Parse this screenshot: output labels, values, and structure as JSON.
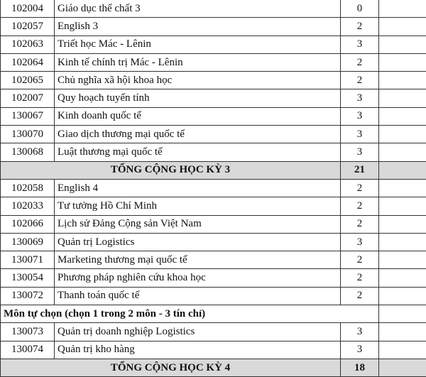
{
  "semester3": {
    "courses": [
      {
        "code": "102004",
        "name": "Giáo dục thể chất 3",
        "credits": "0"
      },
      {
        "code": "102057",
        "name": "English 3",
        "credits": "2"
      },
      {
        "code": "102063",
        "name": "Triết học Mác - Lênin",
        "credits": "3"
      },
      {
        "code": "102064",
        "name": "Kinh tế chính trị Mác - Lênin",
        "credits": "2"
      },
      {
        "code": "102065",
        "name": "Chủ nghĩa xã hội khoa học",
        "credits": "2"
      },
      {
        "code": "102007",
        "name": "Quy hoạch tuyến tính",
        "credits": "3"
      },
      {
        "code": "130067",
        "name": "Kinh doanh quốc tế",
        "credits": "3"
      },
      {
        "code": "130070",
        "name": "Giao dịch thương mại quốc tế",
        "credits": "3"
      },
      {
        "code": "130068",
        "name": "Luật thương mại quốc tế",
        "credits": "3"
      }
    ],
    "total_label": "TỔNG CỘNG HỌC KỲ 3",
    "total": "21"
  },
  "semester4": {
    "courses": [
      {
        "code": "102058",
        "name": "English 4",
        "credits": "2"
      },
      {
        "code": "102033",
        "name": "Tư tưởng Hồ Chí Minh",
        "credits": "2"
      },
      {
        "code": "102066",
        "name": "Lịch sử Đảng Cộng sản Việt Nam",
        "credits": "2"
      },
      {
        "code": "130069",
        "name": "Quản trị Logistics",
        "credits": "3"
      },
      {
        "code": "130071",
        "name": "Marketing thương mại quốc tế",
        "credits": "2"
      },
      {
        "code": "130054",
        "name": "Phương pháp nghiên cứu khoa học",
        "credits": "2"
      },
      {
        "code": "130072",
        "name": "Thanh toán quốc tế",
        "credits": "2"
      }
    ],
    "elective_label": "Môn tự chọn (chọn 1 trong 2 môn - 3 tín chỉ)",
    "electives": [
      {
        "code": "130073",
        "name": "Quản trị doanh nghiệp Logistics",
        "credits": "3"
      },
      {
        "code": "130074",
        "name": "Quản trị kho hàng",
        "credits": "3"
      }
    ],
    "total_label": "TỔNG CỘNG HỌC KỲ 4",
    "total": "18"
  }
}
